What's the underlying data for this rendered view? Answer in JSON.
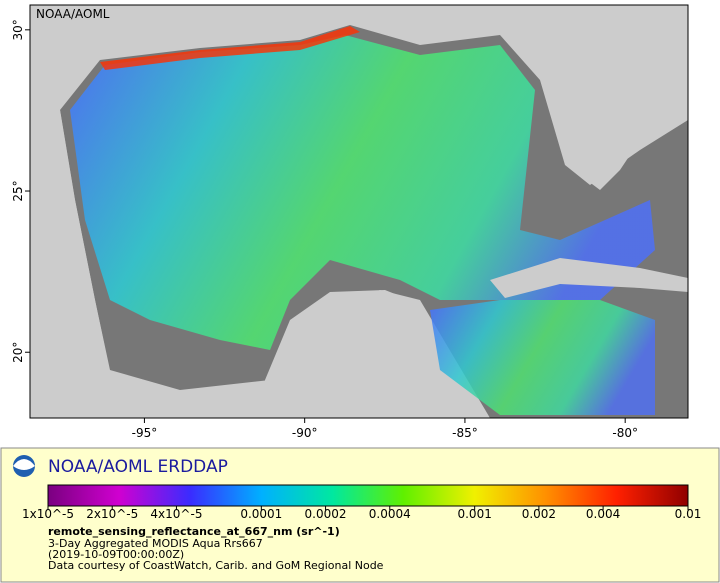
{
  "map": {
    "label": "NOAA/AOML",
    "xlim": [
      -98.57,
      -78.04
    ],
    "ylim": [
      17.96,
      30.77
    ],
    "xticks": [
      {
        "value": -95,
        "label": "-95°"
      },
      {
        "value": -90,
        "label": "-90°"
      },
      {
        "value": -85,
        "label": "-85°"
      },
      {
        "value": -80,
        "label": "-80°"
      }
    ],
    "yticks": [
      {
        "value": 20,
        "label": "20°"
      },
      {
        "value": 25,
        "label": "25°"
      },
      {
        "value": 30,
        "label": "30°"
      }
    ]
  },
  "legend": {
    "title": "NOAA/AOML ERDDAP",
    "colorbar": {
      "scale": "log",
      "range": [
        1e-05,
        0.01
      ],
      "colors": [
        "#7a0080",
        "#d000d0",
        "#3a2cff",
        "#00b0ff",
        "#00e8a0",
        "#60f000",
        "#f0f000",
        "#ff9000",
        "#ff2000",
        "#900000"
      ],
      "ticks": [
        {
          "value": 1e-05,
          "label": "1x10^-5"
        },
        {
          "value": 2e-05,
          "label": "2x10^-5"
        },
        {
          "value": 4e-05,
          "label": "4x10^-5"
        },
        0.0001,
        0.0002,
        0.0004,
        0.001,
        0.002,
        0.004,
        0.01
      ]
    },
    "variable": "remote_sensing_reflectance_at_667_nm (sr^-1)",
    "lines": [
      "3-Day Aggregated MODIS Aqua Rrs667",
      "(2019-10-09T00:00:00Z)",
      "Data courtesy of CoastWatch, Carib. and GoM Regional Node"
    ]
  }
}
